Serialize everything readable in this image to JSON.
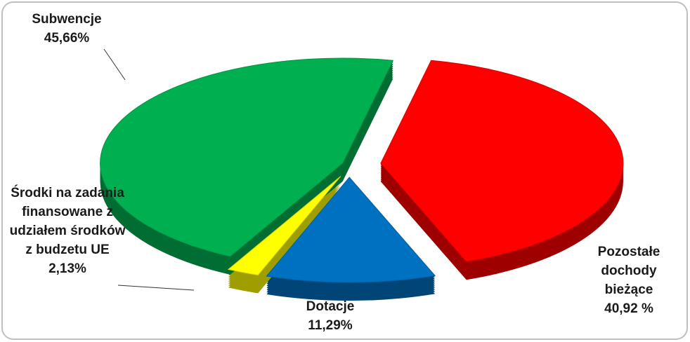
{
  "chart_data": {
    "type": "pie",
    "categories": [
      "Pozostałe dochody bieżące",
      "Dotacje",
      "Środki na zadania finansowane z udziałem środków z budzetu UE",
      "Subwencje"
    ],
    "values": [
      40.92,
      11.29,
      2.13,
      45.66
    ],
    "value_labels": [
      "40,92 %",
      "11,29%",
      "2,13%",
      "45,66%"
    ],
    "colors": [
      "#ff0000",
      "#0070c0",
      "#ffff00",
      "#00b050"
    ]
  }
}
